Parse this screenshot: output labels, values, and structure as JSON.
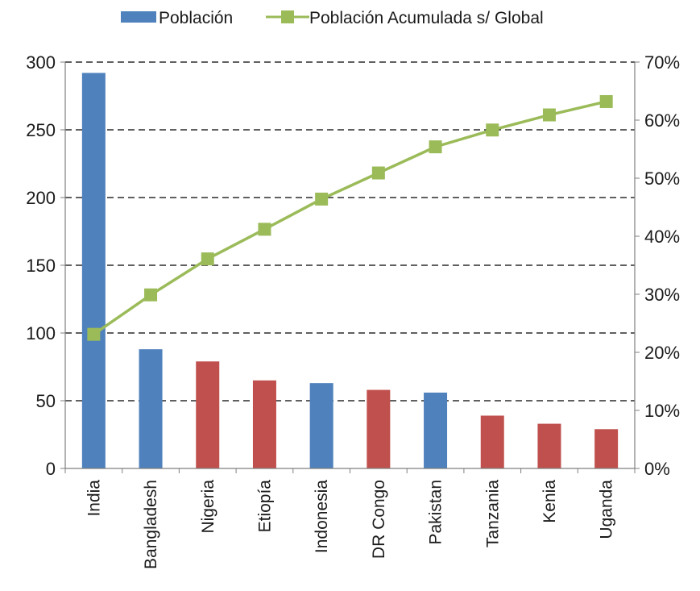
{
  "chart_data": {
    "type": "bar",
    "title": "",
    "xlabel": "",
    "ylabel": "",
    "y2label": "",
    "categories": [
      "India",
      "Bangladesh",
      "Nigeria",
      "Etiopía",
      "Indonesia",
      "DR Congo",
      "Pakistan",
      "Tanzania",
      "Kenia",
      "Uganda"
    ],
    "ylim": [
      0,
      300
    ],
    "y_ticks": [
      0,
      50,
      100,
      150,
      200,
      250,
      300
    ],
    "y2lim": [
      0,
      70
    ],
    "y2_ticks": [
      "0%",
      "10%",
      "20%",
      "30%",
      "40%",
      "50%",
      "60%",
      "70%"
    ],
    "grid": "dashed horizontal",
    "legend_position": "top",
    "legend": [
      {
        "label": "Población",
        "kind": "bar",
        "color": "#4f81bd"
      },
      {
        "label": "Población Acumulada s/ Global",
        "kind": "line",
        "color": "#9bbb59"
      }
    ],
    "series": [
      {
        "name": "Población",
        "type": "bar",
        "axis": "left",
        "values": [
          292,
          88,
          79,
          65,
          63,
          58,
          56,
          39,
          33,
          29
        ],
        "colors": [
          "#4f81bd",
          "#4f81bd",
          "#c0504d",
          "#c0504d",
          "#4f81bd",
          "#c0504d",
          "#4f81bd",
          "#c0504d",
          "#c0504d",
          "#c0504d"
        ]
      },
      {
        "name": "Población Acumulada s/ Global",
        "type": "line",
        "axis": "right",
        "color": "#9bbb59",
        "values": [
          23.1,
          29.9,
          36.1,
          41.2,
          46.4,
          50.9,
          55.4,
          58.3,
          60.9,
          63.2
        ]
      }
    ]
  }
}
